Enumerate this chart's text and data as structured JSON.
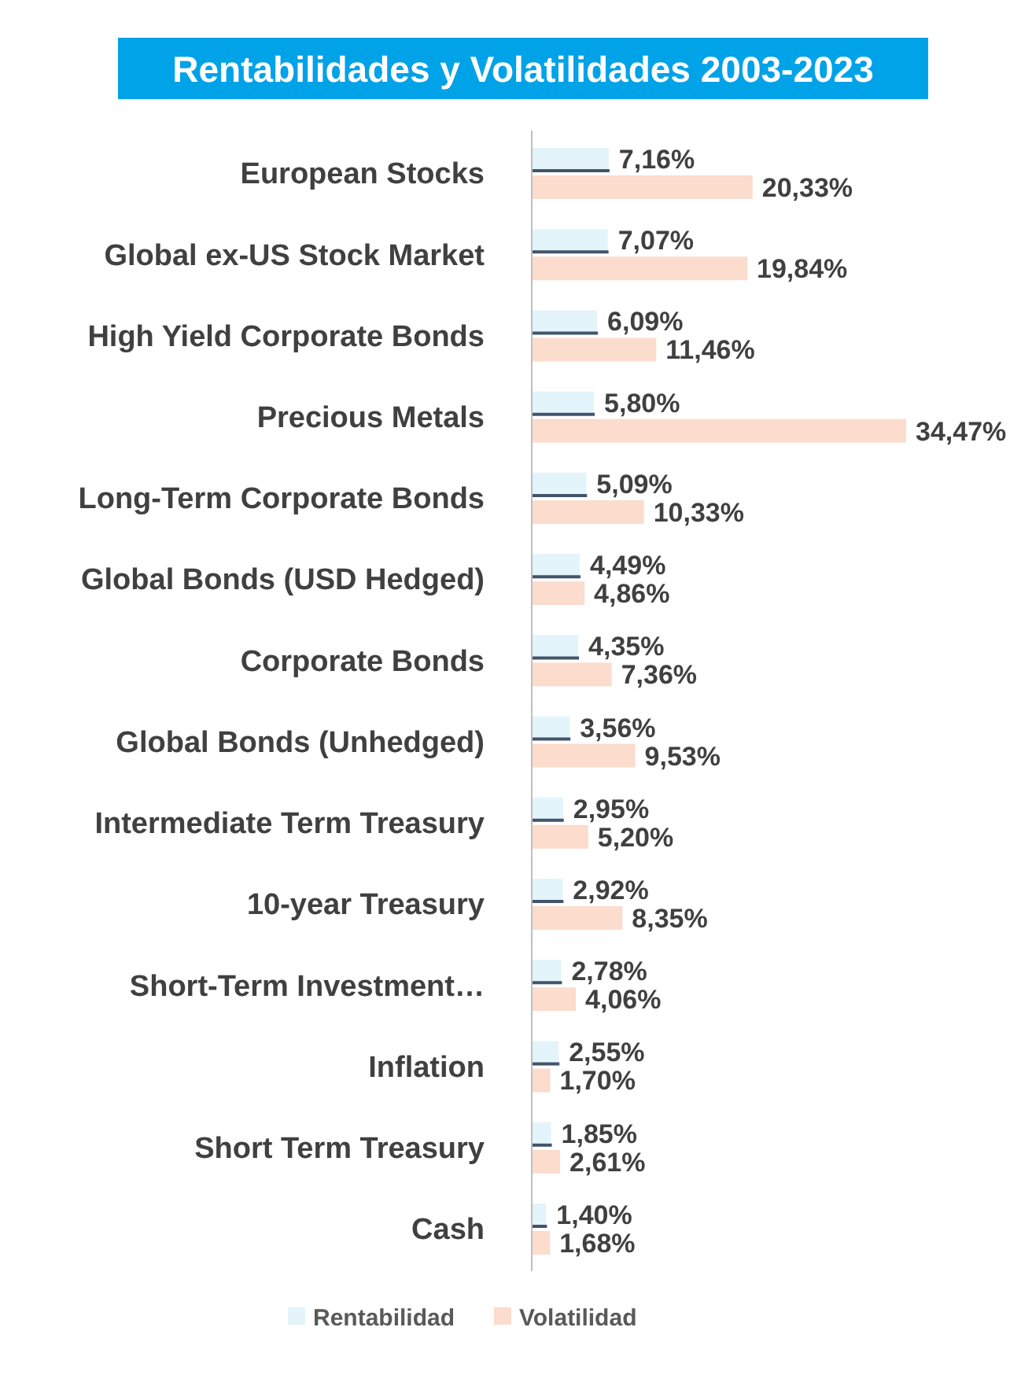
{
  "chart_data": {
    "type": "bar",
    "orientation": "horizontal",
    "title": "Rentabilidades y Volatilidades 2003-2023",
    "categories": [
      "European Stocks",
      "Global ex-US Stock Market",
      "High Yield Corporate Bonds",
      "Precious Metals",
      "Long-Term Corporate Bonds",
      "Global Bonds (USD Hedged)",
      "Corporate Bonds",
      "Global Bonds (Unhedged)",
      "Intermediate Term Treasury",
      "10-year Treasury",
      "Short-Term Investment…",
      "Inflation",
      "Short Term Treasury",
      "Cash"
    ],
    "series": [
      {
        "name": "Rentabilidad",
        "color": "#e3f4fb",
        "values": [
          7.16,
          7.07,
          6.09,
          5.8,
          5.09,
          4.49,
          4.35,
          3.56,
          2.95,
          2.92,
          2.78,
          2.55,
          1.85,
          1.4
        ],
        "value_labels": [
          "7,16%",
          "7,07%",
          "6,09%",
          "5,80%",
          "5,09%",
          "4,49%",
          "4,35%",
          "3,56%",
          "2,95%",
          "2,92%",
          "2,78%",
          "2,55%",
          "1,85%",
          "1,40%"
        ]
      },
      {
        "name": "Volatilidad",
        "color": "#fbdccd",
        "values": [
          20.33,
          19.84,
          11.46,
          34.47,
          10.33,
          4.86,
          7.36,
          9.53,
          5.2,
          8.35,
          4.06,
          1.7,
          2.61,
          1.68
        ],
        "value_labels": [
          "20,33%",
          "19,84%",
          "11,46%",
          "34,47%",
          "10,33%",
          "4,86%",
          "7,36%",
          "9,53%",
          "5,20%",
          "8,35%",
          "4,06%",
          "1,70%",
          "2,61%",
          "1,68%"
        ]
      }
    ],
    "legend": "bottom"
  }
}
